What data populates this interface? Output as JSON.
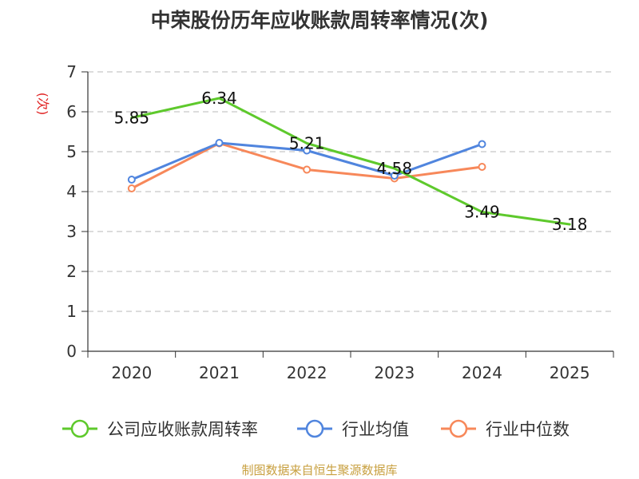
{
  "chart_data": {
    "type": "line",
    "title": "中荣股份历年应收账款周转率情况(次)",
    "ylabel": "(次)",
    "xlabel": "",
    "categories": [
      "2020",
      "2021",
      "2022",
      "2023",
      "2024",
      "2025"
    ],
    "ylim": [
      0,
      7
    ],
    "yticks": [
      0,
      1,
      2,
      3,
      4,
      5,
      6,
      7
    ],
    "grid": true,
    "legend_position": "bottom",
    "series": [
      {
        "name": "公司应收账款周转率",
        "color": "#5ec92c",
        "values": [
          5.85,
          6.34,
          5.21,
          4.58,
          3.49,
          3.18
        ],
        "labels": [
          "5.85",
          "6.34",
          "5.21",
          "4.58",
          "3.49",
          "3.18"
        ],
        "markers": false
      },
      {
        "name": "行业均值",
        "color": "#5085de",
        "values": [
          4.3,
          5.22,
          5.03,
          4.4,
          5.19,
          null
        ],
        "markers": true
      },
      {
        "name": "行业中位数",
        "color": "#f7885a",
        "values": [
          4.08,
          5.21,
          4.55,
          4.33,
          4.62,
          null
        ],
        "markers": true
      }
    ],
    "source": "制图数据来自恒生聚源数据库"
  }
}
